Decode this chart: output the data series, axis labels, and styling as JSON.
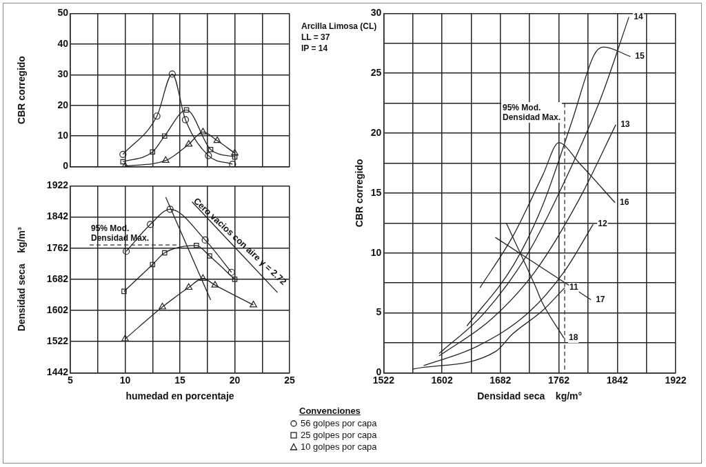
{
  "chart_data": [
    {
      "type": "line",
      "ylabel": "CBR corregido",
      "xlim": [
        5,
        25
      ],
      "xticks": [
        5,
        {
          "value": 7.5,
          "label": null
        },
        10,
        {
          "value": 12.5,
          "label": null
        },
        15,
        {
          "value": 17.5,
          "label": null
        },
        20,
        {
          "value": 22.5,
          "label": null
        },
        25
      ],
      "ylim": [
        0,
        50
      ],
      "yticks": [
        0,
        10,
        20,
        30,
        40,
        50
      ],
      "grid": true,
      "tick_labels": "y",
      "annotations": [
        "Arcilla Limosa (CL)",
        "LL = 37",
        "IP  = 14"
      ],
      "series": [
        {
          "color": "#222222",
          "marker": "circle",
          "x": [
            9.8,
            12.9,
            14.3,
            15.5,
            17.6,
            19.8
          ],
          "values": [
            4,
            16.5,
            30.2,
            15.3,
            3.6,
            0.8
          ]
        },
        {
          "color": "#222222",
          "marker": "square",
          "x": [
            9.8,
            12.5,
            13.6,
            15.6,
            17.8,
            20
          ],
          "values": [
            1.6,
            4.8,
            10,
            18.5,
            5.6,
            3.2
          ]
        },
        {
          "color": "#222222",
          "marker": "triangle",
          "x": [
            10,
            13.7,
            15.8,
            17.1,
            18.4,
            20
          ],
          "values": [
            0.2,
            2,
            7.3,
            11.3,
            8.5,
            4.4
          ]
        }
      ]
    },
    {
      "type": "line",
      "xlabel": "humedad en porcentaje",
      "ylabel": "Densidad seca    kg/m³",
      "xlim": [
        5,
        25
      ],
      "xticks": [
        5,
        {
          "value": 7.5,
          "label": null
        },
        10,
        {
          "value": 12.5,
          "label": null
        },
        15,
        {
          "value": 17.5,
          "label": null
        },
        20,
        {
          "value": 22.5,
          "label": null
        },
        25
      ],
      "ylim": [
        1442,
        1922
      ],
      "yticks": [
        1442,
        1522,
        1602,
        1682,
        1762,
        1842,
        1922
      ],
      "grid": true,
      "legend": "bottom",
      "legend_title": "Convenciones",
      "ref_lines": [
        {
          "axis": "y",
          "value": 1770,
          "label": "95% Mod. Densidad Max.",
          "line_style": "dashed"
        }
      ],
      "annotations": [
        {
          "text": "Cero vacios con aire γ = 2.72",
          "x": 20,
          "y": 1765
        }
      ],
      "series": [
        {
          "name": "56 golpes por capa",
          "color": "#222222",
          "marker": "circle",
          "x": [
            10.1,
            12.3,
            14.1,
            17.3,
            19.7
          ],
          "values": [
            1754,
            1823,
            1862,
            1783,
            1700
          ]
        },
        {
          "name": "25 golpes por capa",
          "color": "#222222",
          "marker": "square",
          "x": [
            9.9,
            12.5,
            13.6,
            16.5,
            17.7,
            20
          ],
          "values": [
            1651,
            1720,
            1750,
            1769,
            1742,
            1682
          ]
        },
        {
          "name": "10 golpes por capa",
          "color": "#222222",
          "marker": "triangle",
          "x": [
            10,
            13.4,
            15.8,
            17.1,
            18.2,
            21.7
          ],
          "values": [
            1529,
            1611,
            1661,
            1684,
            1667,
            1616
          ]
        },
        {
          "color": "#222222",
          "marker": "none",
          "x": [
            13.7,
            17.8
          ],
          "values": [
            1893,
            1629
          ]
        },
        {
          "color": "#222222",
          "marker": "none",
          "x": [
            16.1,
            23.9
          ],
          "values": [
            1881,
            1648
          ]
        }
      ]
    },
    {
      "type": "line",
      "xlabel": "Densidad seca    kg/m°",
      "ylabel": "CBR corregido",
      "xlim": [
        1522,
        1922
      ],
      "xticks": [
        1522,
        {
          "value": 1562,
          "label": null
        },
        1602,
        {
          "value": 1642,
          "label": null
        },
        1682,
        {
          "value": 1722,
          "label": null
        },
        1762,
        {
          "value": 1802,
          "label": null
        },
        1842,
        {
          "value": 1882,
          "label": null
        },
        1922
      ],
      "ylim": [
        0,
        30
      ],
      "yticks": [
        0,
        {
          "value": 2.5,
          "label": null
        },
        5,
        {
          "value": 7.5,
          "label": null
        },
        10,
        {
          "value": 12.5,
          "label": null
        },
        15,
        {
          "value": 17.5,
          "label": null
        },
        20,
        {
          "value": 22.5,
          "label": null
        },
        25,
        {
          "value": 27.5,
          "label": null
        },
        30
      ],
      "grid": true,
      "ref_lines": [
        {
          "axis": "x",
          "value": 1770,
          "label": "95% Mod. Densidad Max.",
          "line_style": "dashed"
        }
      ],
      "series": [
        {
          "name": "11",
          "color": "#222222",
          "marker": "none",
          "x": [
            1562,
            1676,
            1698,
            1740,
            1770
          ],
          "values": [
            0.3,
            1.8,
            3.2,
            5.2,
            7.1
          ]
        },
        {
          "name": "12",
          "color": "#222222",
          "marker": "none",
          "x": [
            1577,
            1650,
            1720,
            1770,
            1809
          ],
          "values": [
            0.6,
            2.2,
            5,
            8.5,
            12.4
          ]
        },
        {
          "name": "13",
          "color": "#222222",
          "marker": "none",
          "x": [
            1598,
            1670,
            1730,
            1790,
            1840
          ],
          "values": [
            1.4,
            4.5,
            8.5,
            14.5,
            20.7
          ]
        },
        {
          "name": "14",
          "color": "#222222",
          "marker": "none",
          "x": [
            1598,
            1660,
            1720,
            1770,
            1820,
            1858
          ],
          "values": [
            1.6,
            5,
            10,
            16,
            23,
            29.7
          ]
        },
        {
          "name": "15",
          "color": "#222222",
          "marker": "none",
          "x": [
            1636,
            1700,
            1740,
            1780,
            1810,
            1823,
            1860
          ],
          "values": [
            3.9,
            9,
            14,
            21,
            26.5,
            27.2,
            26.4
          ]
        },
        {
          "name": "16",
          "color": "#222222",
          "marker": "none",
          "x": [
            1654,
            1700,
            1740,
            1762,
            1790,
            1839
          ],
          "values": [
            7.1,
            11.5,
            16.5,
            19.2,
            17.5,
            14.2
          ]
        },
        {
          "name": "17",
          "color": "#222222",
          "marker": "none",
          "x": [
            1675,
            1806
          ],
          "values": [
            11.3,
            6.1
          ]
        },
        {
          "name": "18",
          "color": "#222222",
          "marker": "none",
          "x": [
            1690,
            1730,
            1739,
            1769
          ],
          "values": [
            12.5,
            7.2,
            5.9,
            2.9
          ]
        }
      ]
    }
  ]
}
